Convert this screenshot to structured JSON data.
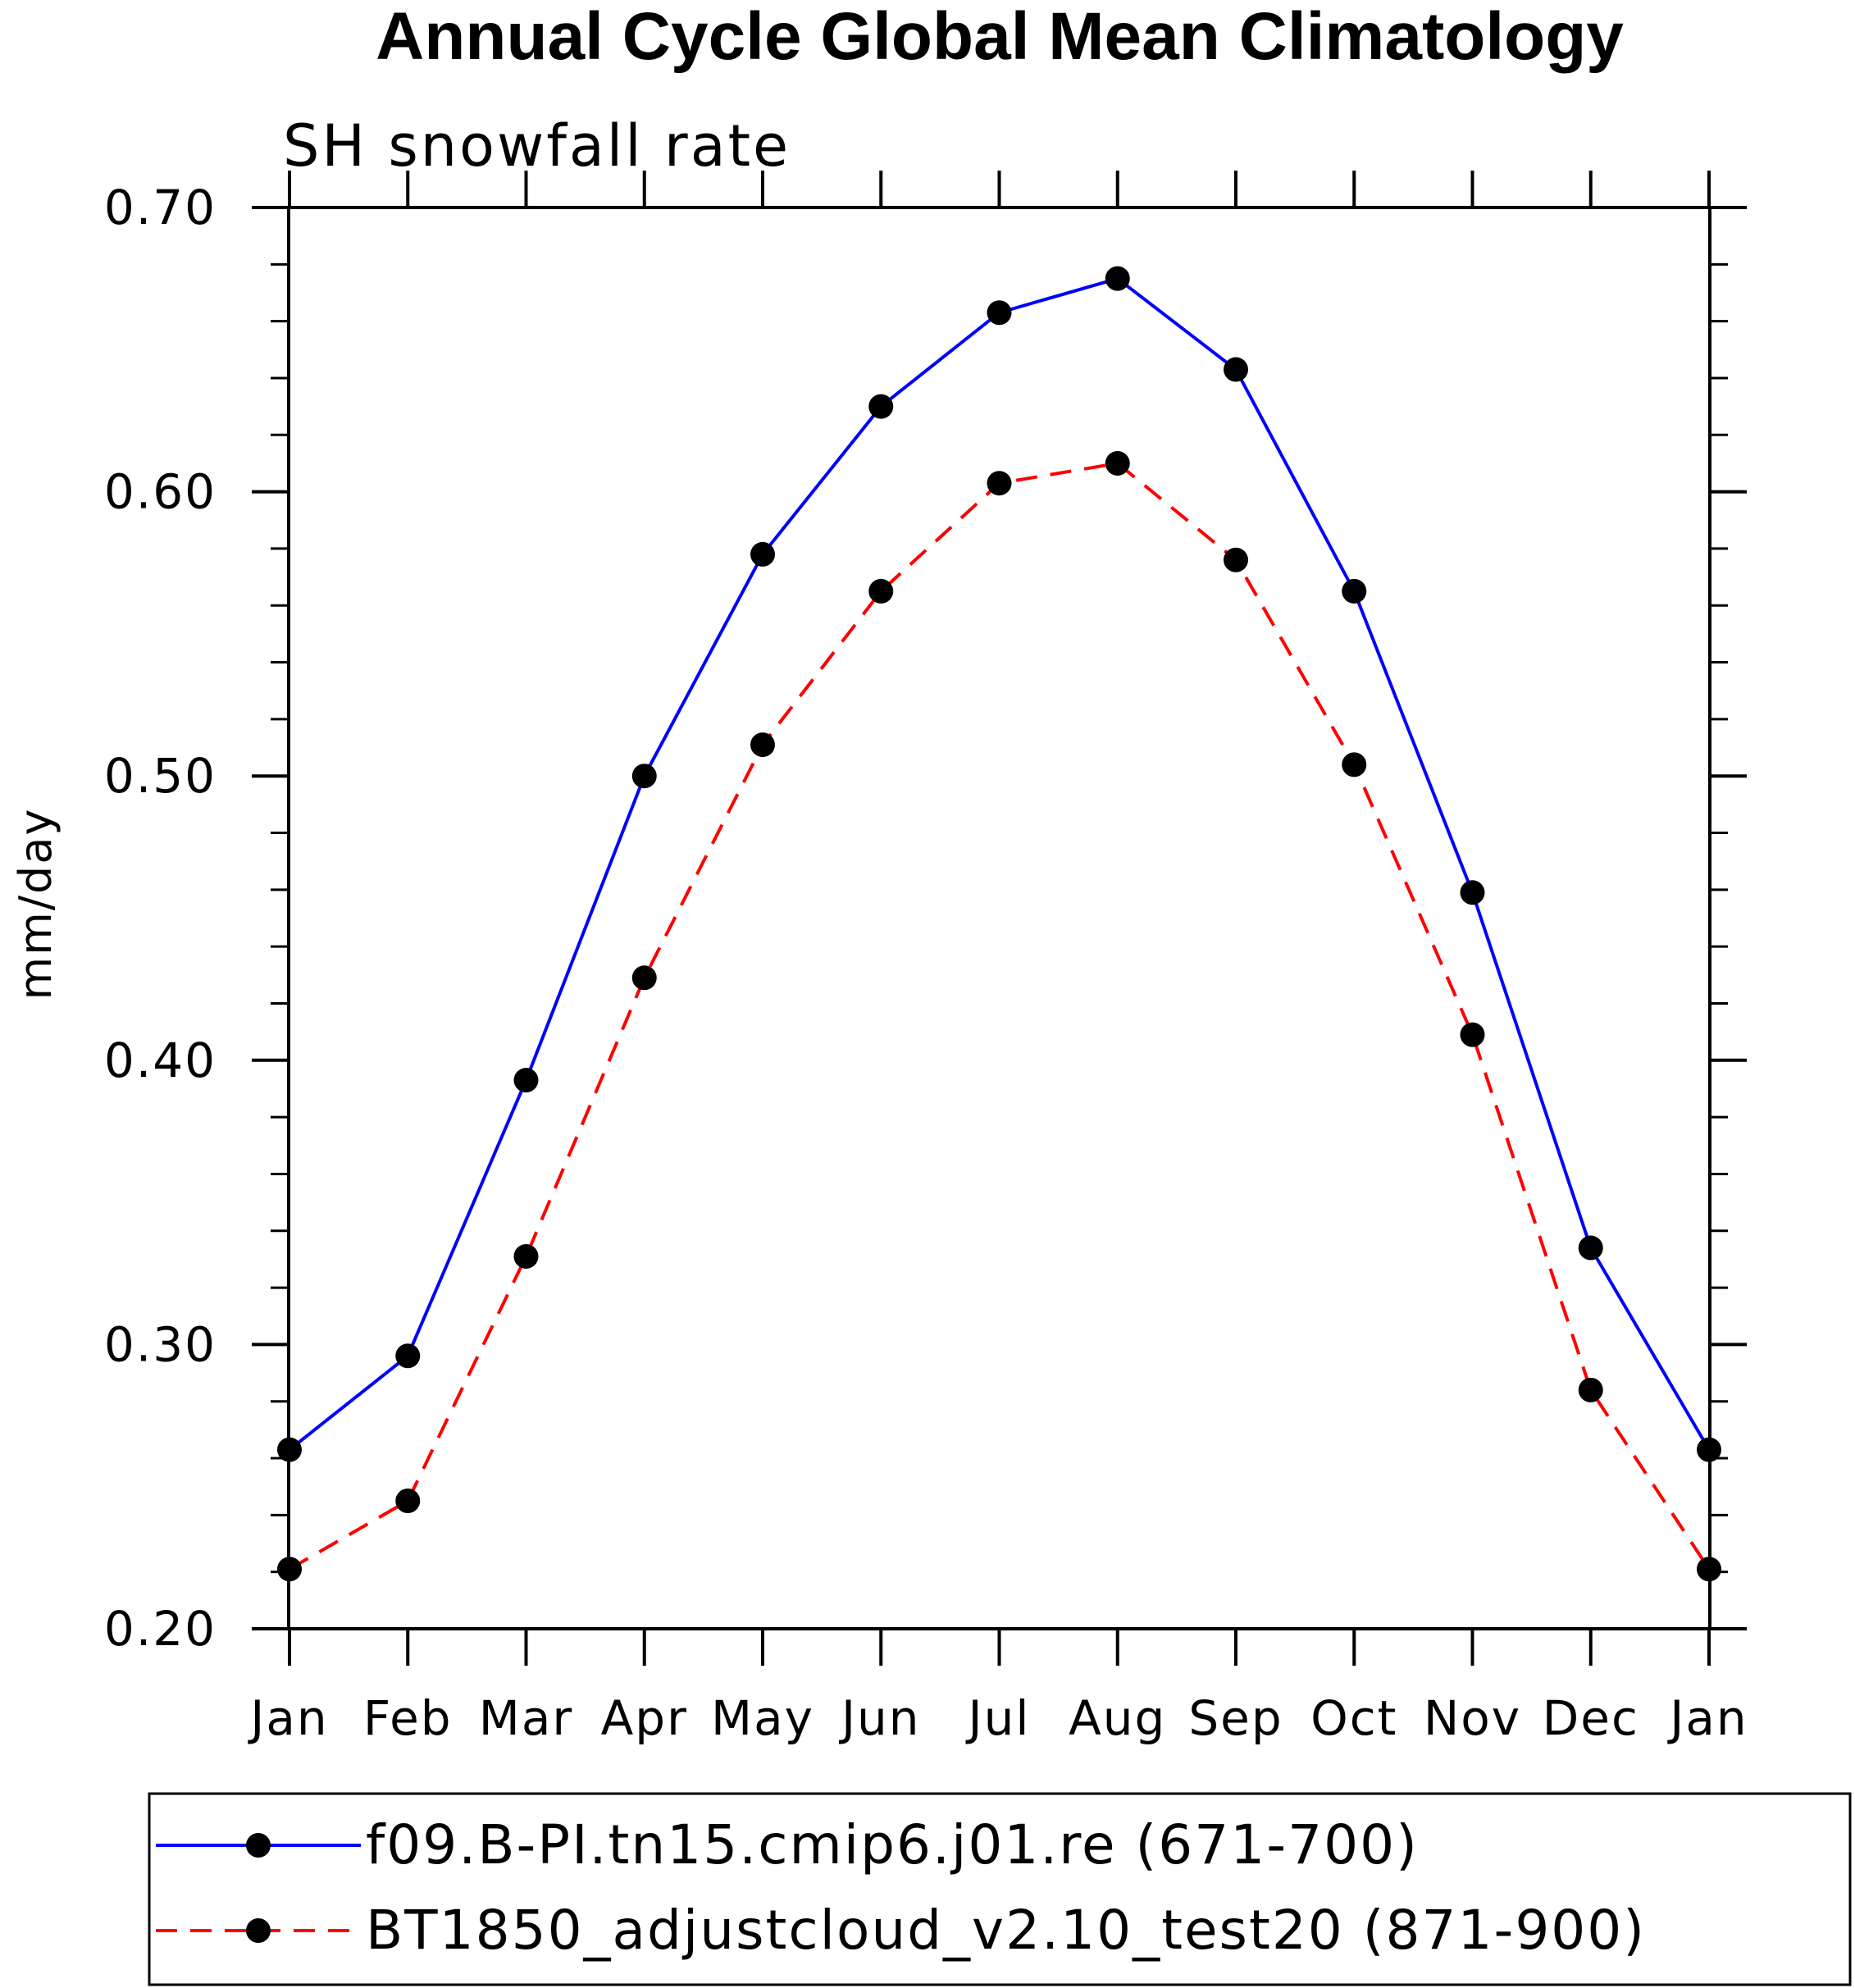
{
  "chart_data": {
    "type": "line",
    "title": "Annual Cycle Global Mean Climatology",
    "subtitle": "SH snowfall rate",
    "xlabel": "",
    "ylabel": "mm/day",
    "categories": [
      "Jan",
      "Feb",
      "Mar",
      "Apr",
      "May",
      "Jun",
      "Jul",
      "Aug",
      "Sep",
      "Oct",
      "Nov",
      "Dec",
      "Jan"
    ],
    "ylim": [
      0.2,
      0.7
    ],
    "yticks": [
      "0.20",
      "0.30",
      "0.40",
      "0.50",
      "0.60",
      "0.70"
    ],
    "ytick_values": [
      0.2,
      0.3,
      0.4,
      0.5,
      0.6,
      0.7
    ],
    "grid": false,
    "legend_position": "bottom",
    "series": [
      {
        "name": "f09.B-PI.tn15.cmip6.j01.re (671-700)",
        "color": "#0000ff",
        "dash": "solid",
        "marker": "filled-circle",
        "values": [
          0.263,
          0.296,
          0.393,
          0.5,
          0.578,
          0.63,
          0.663,
          0.675,
          0.643,
          0.565,
          0.459,
          0.334,
          0.263
        ]
      },
      {
        "name": "BT1850_adjustcloud_v2.10_test20 (871-900)",
        "color": "#ff0000",
        "dash": "dashed",
        "marker": "filled-circle",
        "values": [
          0.221,
          0.245,
          0.331,
          0.429,
          0.511,
          0.565,
          0.603,
          0.61,
          0.576,
          0.504,
          0.409,
          0.284,
          0.221
        ]
      }
    ]
  }
}
